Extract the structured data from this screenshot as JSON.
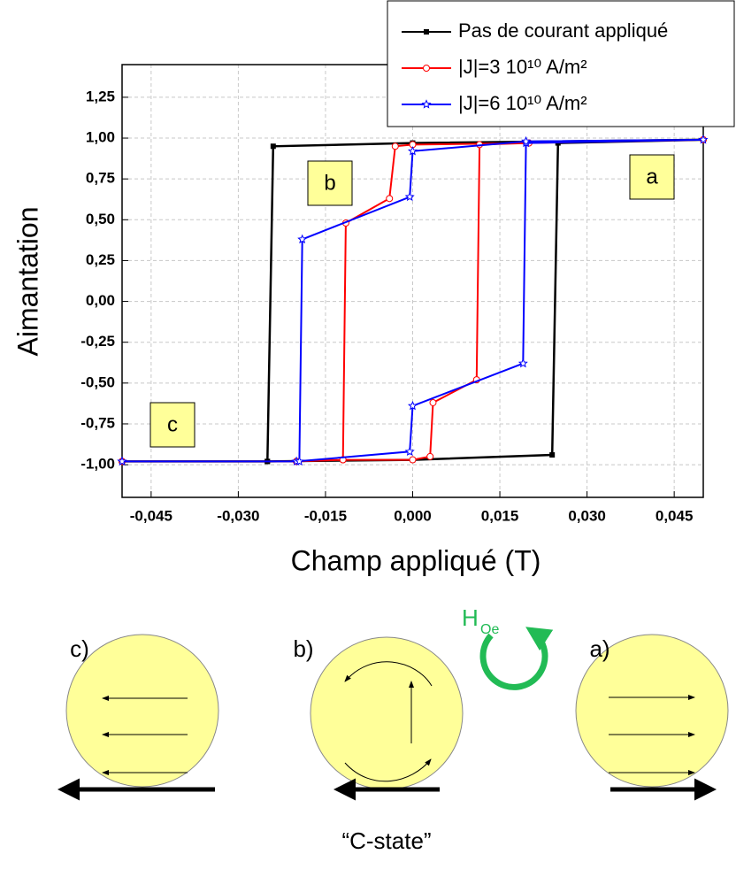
{
  "chart_data": {
    "type": "line",
    "x_label": "Champ appliqué (T)",
    "y_label": "Aimantation",
    "xlim": [
      -0.05,
      0.05
    ],
    "ylim": [
      -1.2,
      1.45
    ],
    "xticks": [
      {
        "value": -0.045,
        "label": "-0,045"
      },
      {
        "value": -0.03,
        "label": "-0,030"
      },
      {
        "value": -0.015,
        "label": "-0,015"
      },
      {
        "value": 0,
        "label": "0,000"
      },
      {
        "value": 0.015,
        "label": "0,015"
      },
      {
        "value": 0.03,
        "label": "0,030"
      },
      {
        "value": 0.045,
        "label": "0,045"
      }
    ],
    "yticks": [
      {
        "value": 1.25,
        "label": "1,25"
      },
      {
        "value": 1,
        "label": "1,00"
      },
      {
        "value": 0.75,
        "label": "0,75"
      },
      {
        "value": 0.5,
        "label": "0,50"
      },
      {
        "value": 0.25,
        "label": "0,25"
      },
      {
        "value": 0,
        "label": "0,00"
      },
      {
        "value": -0.25,
        "label": "-0,25"
      },
      {
        "value": -0.5,
        "label": "-0,50"
      },
      {
        "value": -0.75,
        "label": "-0,75"
      },
      {
        "value": -1,
        "label": "-1,00"
      }
    ],
    "grid": true,
    "series": [
      {
        "name": "Pas de courant appliqué",
        "color": "#000000",
        "marker": "square",
        "x": [
          -0.05,
          -0.025,
          0,
          0.024,
          0.025,
          0.05,
          0,
          -0.024,
          -0.025,
          -0.05
        ],
        "values": [
          -0.98,
          -0.98,
          -0.97,
          -0.94,
          0.97,
          0.99,
          0.97,
          0.95,
          -0.98,
          -0.98
        ]
      },
      {
        "name": "|J|=3 10¹⁰ A/m²",
        "color": "#ff0000",
        "marker": "circle",
        "x": [
          -0.05,
          -0.02,
          -0.012,
          0,
          0.003,
          0.0035,
          0.011,
          0.0115,
          0.02,
          0.05,
          0.02,
          0,
          -0.003,
          -0.004,
          -0.0115,
          -0.012,
          -0.02,
          -0.05
        ],
        "values": [
          -0.98,
          -0.98,
          -0.97,
          -0.97,
          -0.95,
          -0.62,
          -0.48,
          0.96,
          0.97,
          0.99,
          0.97,
          0.96,
          0.95,
          0.63,
          0.48,
          -0.97,
          -0.98,
          -0.98
        ]
      },
      {
        "name": "|J|=6 10¹⁰ A/m²",
        "color": "#0000ff",
        "marker": "star",
        "x": [
          -0.05,
          -0.02,
          -0.0005,
          0,
          0.019,
          0.0195,
          0.05,
          0.0195,
          0,
          -0.0005,
          -0.019,
          -0.0195,
          -0.05
        ],
        "values": [
          -0.98,
          -0.98,
          -0.92,
          -0.64,
          -0.38,
          0.97,
          0.99,
          0.98,
          0.92,
          0.64,
          0.38,
          -0.98,
          -0.98
        ]
      }
    ],
    "annotations": [
      "a",
      "b",
      "c"
    ]
  },
  "diagram": {
    "labels": [
      "c)",
      "b)",
      "a)"
    ],
    "field_label": "H",
    "field_subscript": "Oe",
    "caption": "“C-state”"
  }
}
